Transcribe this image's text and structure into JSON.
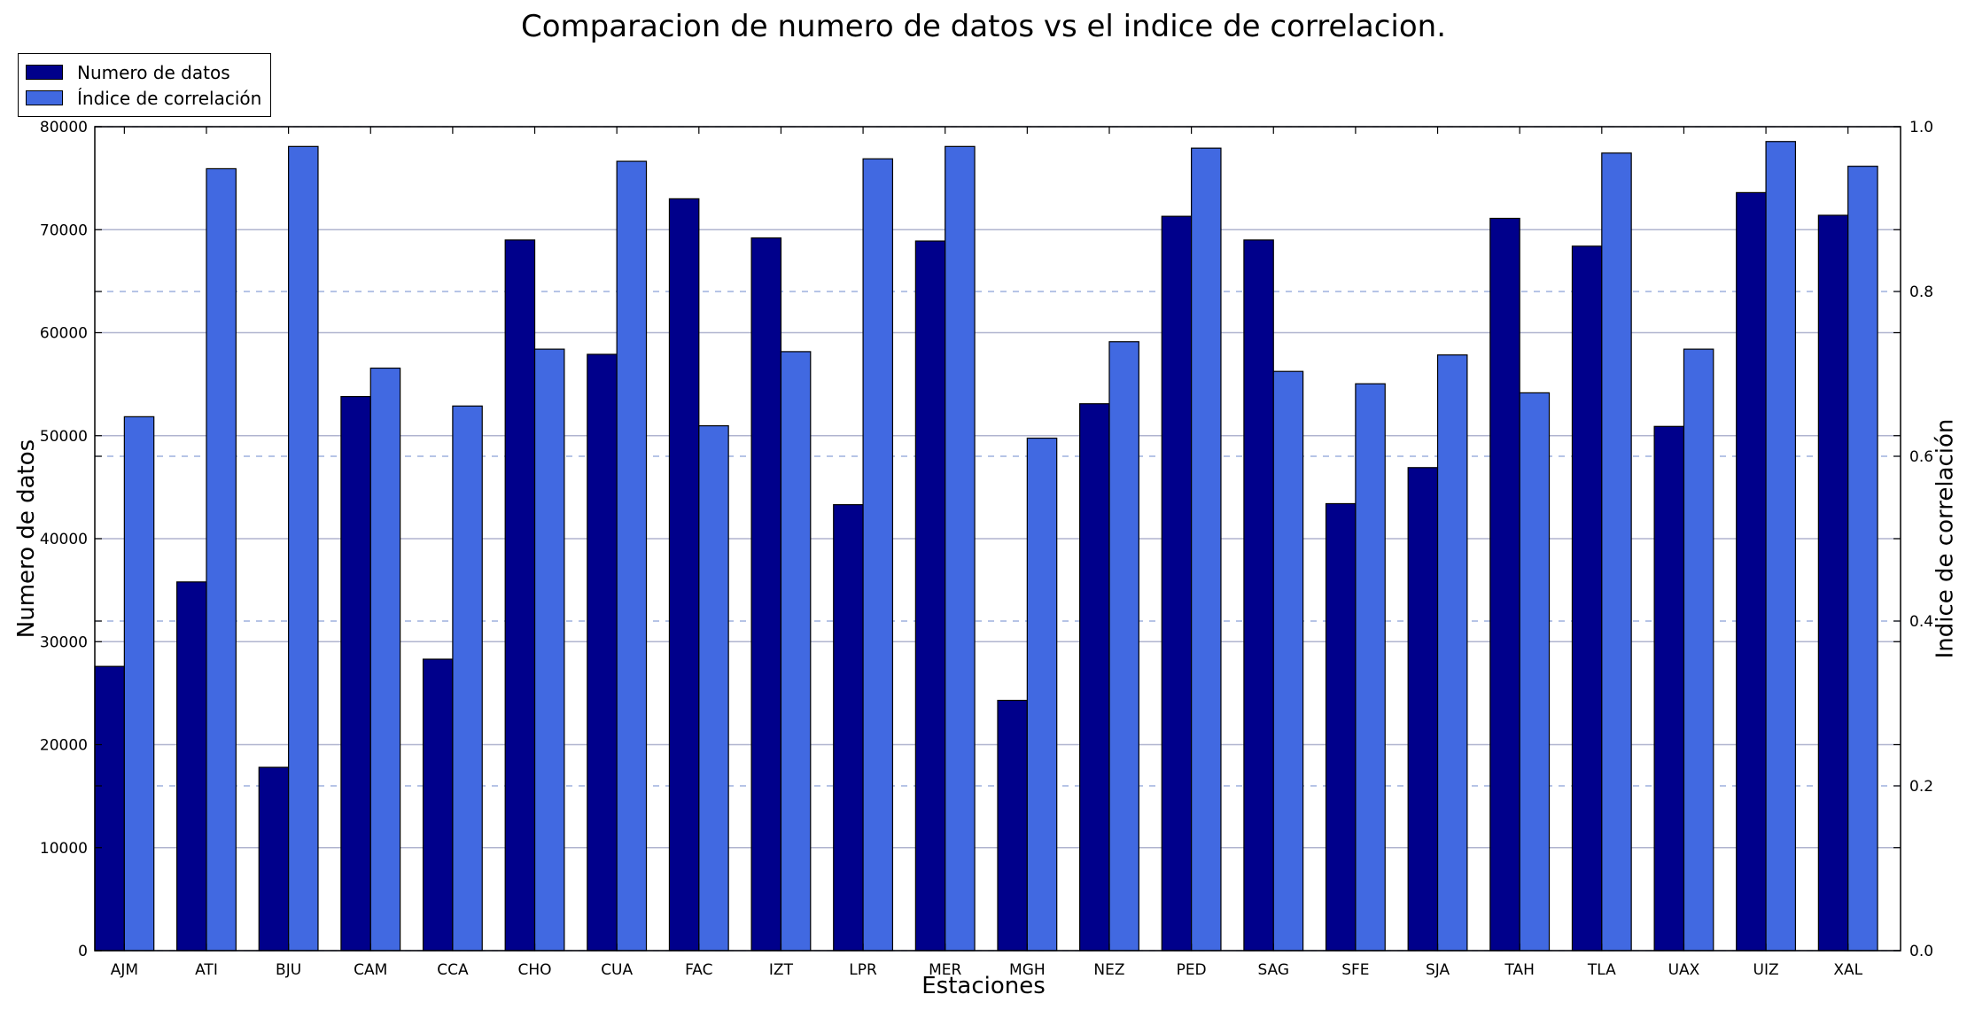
{
  "chart_data": {
    "type": "bar",
    "title": "Comparacion de numero de datos vs el indice de correlacion.",
    "xlabel": "Estaciones",
    "ylabel": "Numero de datos",
    "y2label": "Indice de correlación",
    "categories": [
      "AJM",
      "ATI",
      "BJU",
      "CAM",
      "CCA",
      "CHO",
      "CUA",
      "FAC",
      "IZT",
      "LPR",
      "MER",
      "MGH",
      "NEZ",
      "PED",
      "SAG",
      "SFE",
      "SJA",
      "TAH",
      "TLA",
      "UAX",
      "UIZ",
      "XAL"
    ],
    "series": [
      {
        "name": "Numero de datos",
        "axis": "left",
        "color": "#00008B",
        "values": [
          27600,
          35800,
          17800,
          53800,
          28300,
          69000,
          57900,
          73000,
          69200,
          43300,
          68900,
          24300,
          53100,
          71300,
          69000,
          43400,
          46900,
          71100,
          68400,
          50900,
          73600,
          71400
        ]
      },
      {
        "name": "Índice de correlación",
        "axis": "right",
        "color": "#4169E1",
        "values": [
          0.648,
          0.949,
          0.976,
          0.707,
          0.661,
          0.73,
          0.958,
          0.637,
          0.727,
          0.961,
          0.976,
          0.622,
          0.739,
          0.974,
          0.703,
          0.688,
          0.723,
          0.677,
          0.968,
          0.73,
          0.982,
          0.952
        ]
      }
    ],
    "ylim": [
      0,
      80000
    ],
    "y_ticks": [
      "0",
      "10000",
      "20000",
      "30000",
      "40000",
      "50000",
      "60000",
      "70000",
      "80000"
    ],
    "y2lim": [
      0,
      1
    ],
    "y2_ticks": [
      "0.0",
      "0.2",
      "0.4",
      "0.6",
      "0.8",
      "1.0"
    ],
    "grid": true,
    "legend_position": "top-left"
  }
}
